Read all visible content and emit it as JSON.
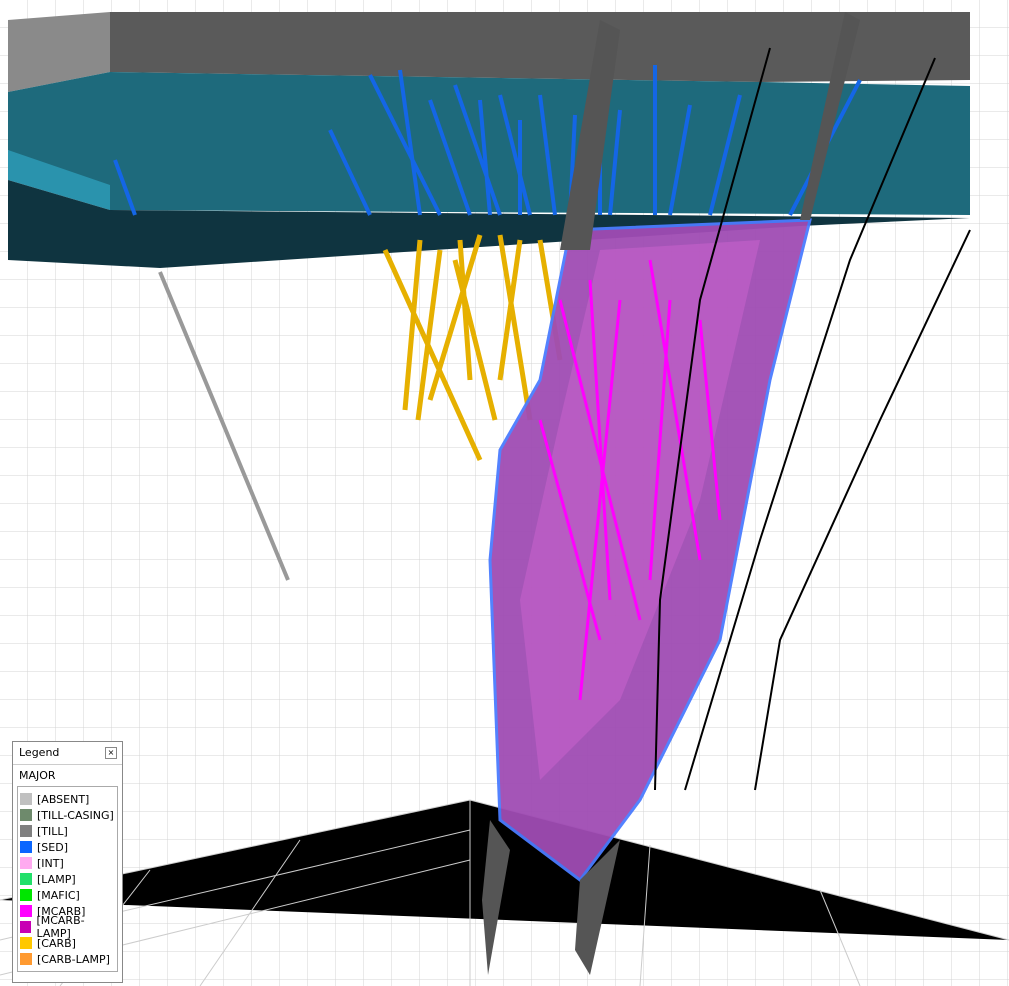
{
  "legend": {
    "title": "Legend",
    "group": "MAJOR",
    "items": [
      {
        "label": "[ABSENT]",
        "color": "#c0c0c0"
      },
      {
        "label": "[TILL-CASING]",
        "color": "#6e8a6c"
      },
      {
        "label": "[TILL]",
        "color": "#808080"
      },
      {
        "label": "[SED]",
        "color": "#0a66ff"
      },
      {
        "label": "[INT]",
        "color": "#ffaaf0"
      },
      {
        "label": "[LAMP]",
        "color": "#22e06a"
      },
      {
        "label": "[MAFIC]",
        "color": "#00e600"
      },
      {
        "label": "[MCARB]",
        "color": "#ff00ff"
      },
      {
        "label": "[MCARB-LAMP]",
        "color": "#c800b4"
      },
      {
        "label": "[CARB]",
        "color": "#ffc800"
      },
      {
        "label": "[CARB-LAMP]",
        "color": "#ff9a30"
      }
    ]
  }
}
